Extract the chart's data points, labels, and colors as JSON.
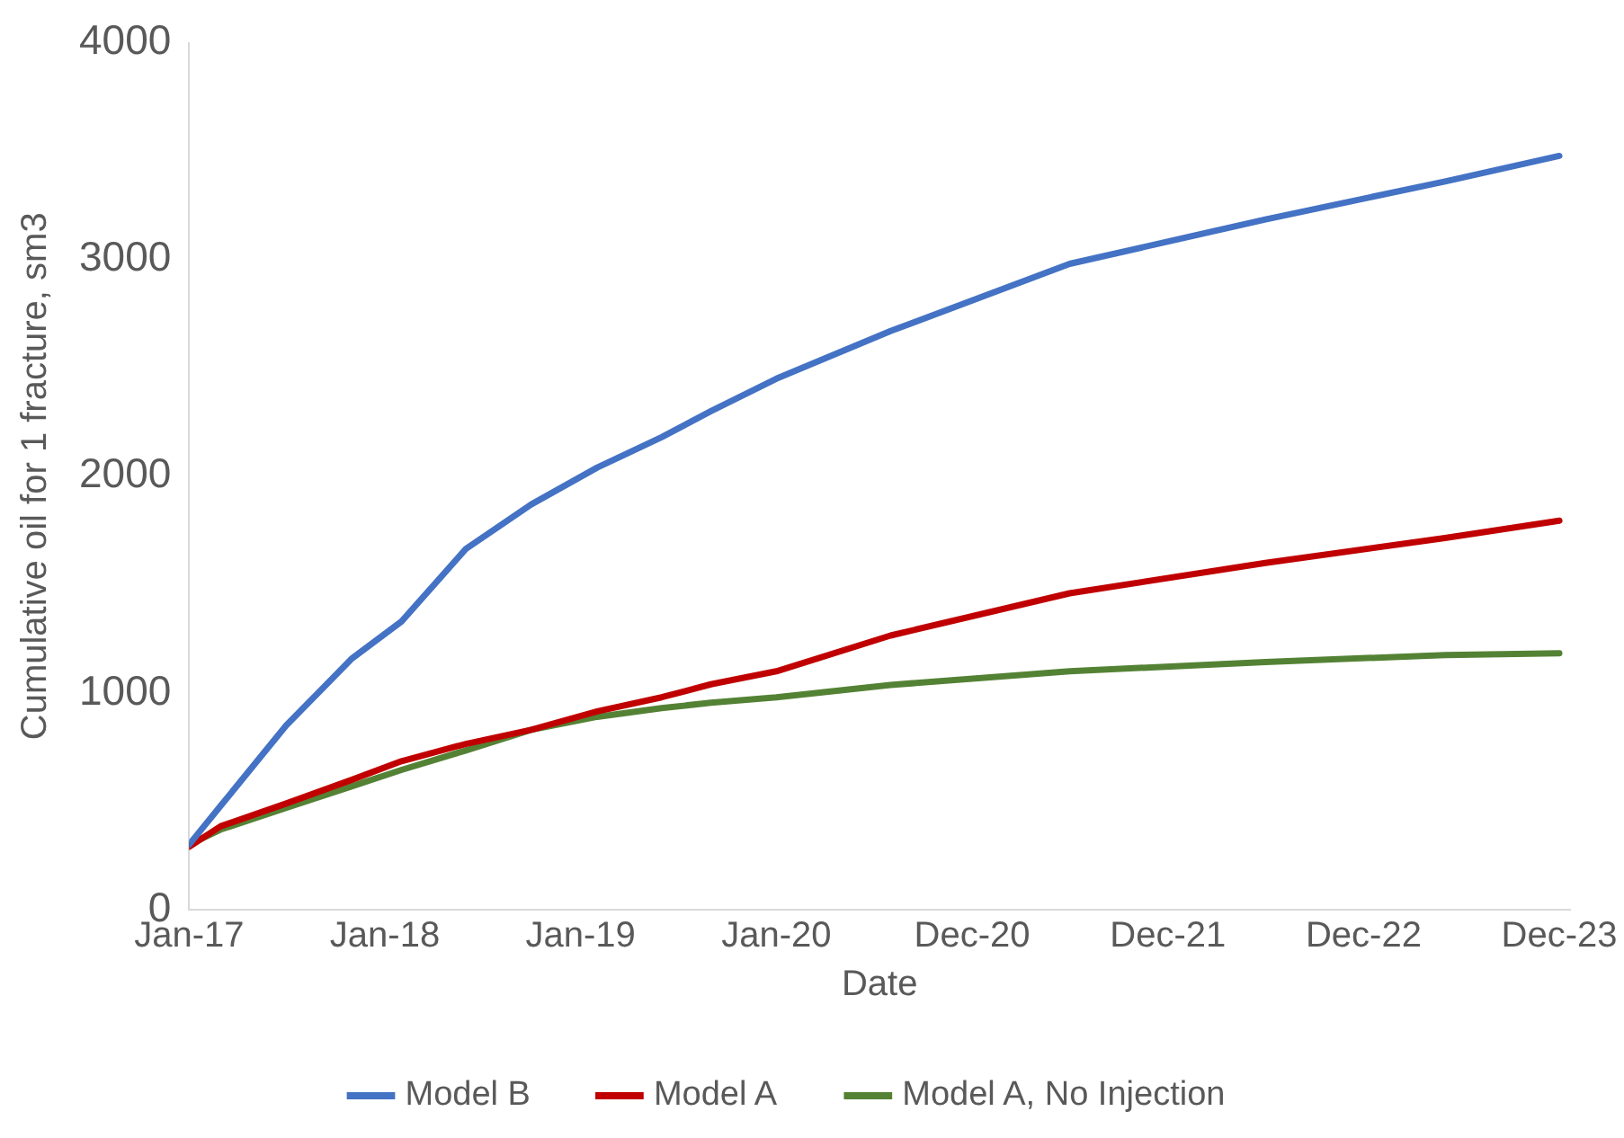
{
  "chart_data": {
    "type": "line",
    "xlabel": "Date",
    "ylabel": "Cumulative oil for 1 fracture, sm3",
    "x": [
      "2017-01",
      "2017-03",
      "2017-07",
      "2017-11",
      "2018-02",
      "2018-06",
      "2018-10",
      "2019-02",
      "2019-06",
      "2019-09",
      "2020-01",
      "2020-08",
      "2021-07",
      "2022-07",
      "2023-06",
      "2023-12-31"
    ],
    "series": [
      {
        "name": "Model B",
        "color": "#4472c4",
        "values": [
          300,
          480,
          850,
          1160,
          1330,
          1665,
          1870,
          2040,
          2180,
          2300,
          2450,
          2670,
          2980,
          3185,
          3360,
          3478
        ]
      },
      {
        "name": "Model A",
        "color": "#c00000",
        "values": [
          290,
          385,
          490,
          600,
          685,
          765,
          830,
          915,
          980,
          1040,
          1100,
          1265,
          1460,
          1600,
          1715,
          1795
        ]
      },
      {
        "name": "Model A, No Injection",
        "color": "#548235",
        "values": [
          300,
          370,
          470,
          570,
          645,
          735,
          830,
          890,
          930,
          955,
          980,
          1037,
          1100,
          1143,
          1175,
          1183
        ]
      }
    ],
    "xlim": [
      "2017-01-01",
      "2024-01-20"
    ],
    "xticks": [
      {
        "value": "2017-01-01",
        "label": "Jan-17"
      },
      {
        "value": "2018-01-01",
        "label": "Jan-18"
      },
      {
        "value": "2019-01-01",
        "label": "Jan-19"
      },
      {
        "value": "2020-01-01",
        "label": "Jan-20"
      },
      {
        "value": "2020-12-31",
        "label": "Dec-20"
      },
      {
        "value": "2021-12-31",
        "label": "Dec-21"
      },
      {
        "value": "2022-12-31",
        "label": "Dec-22"
      },
      {
        "value": "2023-12-31",
        "label": "Dec-23"
      }
    ],
    "ylim": [
      0,
      4000
    ],
    "yticks": [
      0,
      1000,
      2000,
      3000,
      4000
    ],
    "grid": false,
    "legend": "bottom",
    "marker": "none",
    "line_style": "solid"
  }
}
